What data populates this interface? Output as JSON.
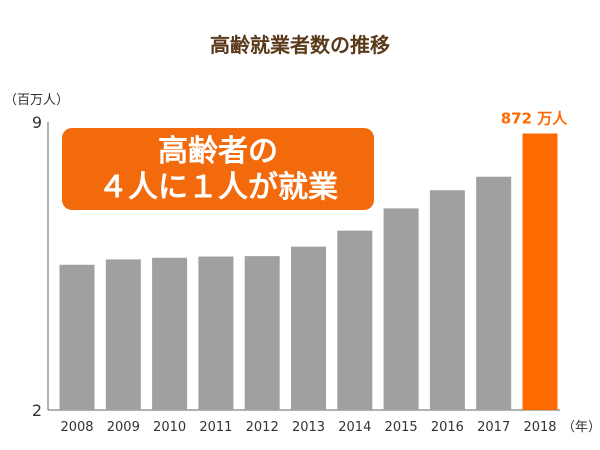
{
  "chart_data": {
    "type": "bar",
    "title": "高齢就業者数の推移",
    "y_unit_label": "（百万人）",
    "x_unit_label": "（年）",
    "categories": [
      "2008",
      "2009",
      "2010",
      "2011",
      "2012",
      "2013",
      "2014",
      "2015",
      "2016",
      "2017",
      "2018"
    ],
    "values": [
      5.53,
      5.66,
      5.7,
      5.73,
      5.74,
      5.97,
      6.36,
      6.9,
      7.34,
      7.67,
      8.72
    ],
    "ylim": [
      2,
      9
    ],
    "ytick_labels": [
      "2",
      "9"
    ],
    "highlight_index": 10,
    "highlight_label": "872 万人",
    "callout_lines": [
      "高齢者の",
      "４人に１人が就業"
    ],
    "grid": false
  },
  "colors": {
    "bar": "#a0a0a0",
    "highlight": "#ff6a00",
    "callout_bg": "#f26a0c",
    "title": "#5a3a1a"
  }
}
